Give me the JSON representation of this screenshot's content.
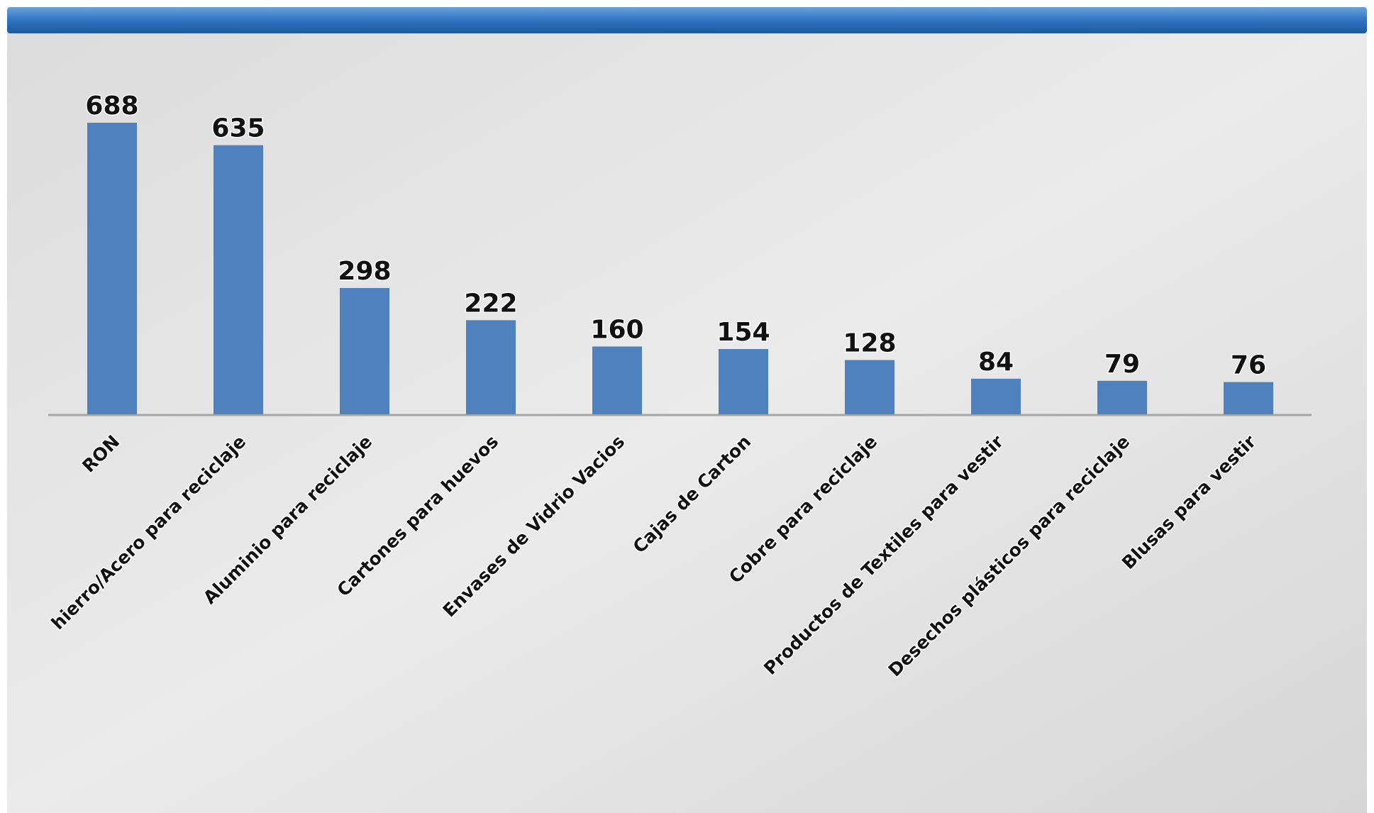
{
  "chart_data": {
    "type": "bar",
    "categories": [
      "RON",
      "hierro/Acero para reciclaje",
      "Aluminio para reciclaje",
      "Cartones para huevos",
      "Envases de Vidrio Vacios",
      "Cajas de Carton",
      "Cobre para reciclaje",
      "Productos de Textiles para vestir",
      "Desechos plásticos para reciclaje",
      "Blusas para vestir"
    ],
    "values": [
      688,
      635,
      298,
      222,
      160,
      154,
      128,
      84,
      79,
      76
    ],
    "color": "#4f81bd"
  }
}
